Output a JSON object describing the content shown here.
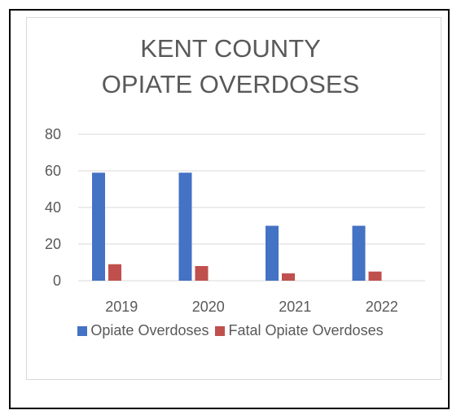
{
  "chart_data": {
    "type": "bar",
    "title_lines": [
      "KENT COUNTY",
      "OPIATE OVERDOSES"
    ],
    "categories": [
      "2019",
      "2020",
      "2021",
      "2022"
    ],
    "series": [
      {
        "name": "Opiate Overdoses",
        "color": "#4472c4",
        "values": [
          59,
          59,
          30,
          30
        ]
      },
      {
        "name": "Fatal Opiate Overdoses",
        "color": "#c0504d",
        "values": [
          9,
          8,
          4,
          5
        ]
      }
    ],
    "ylim": [
      0,
      80
    ],
    "yticks": [
      0,
      20,
      40,
      60,
      80
    ],
    "grid": true,
    "legend_position": "bottom"
  }
}
